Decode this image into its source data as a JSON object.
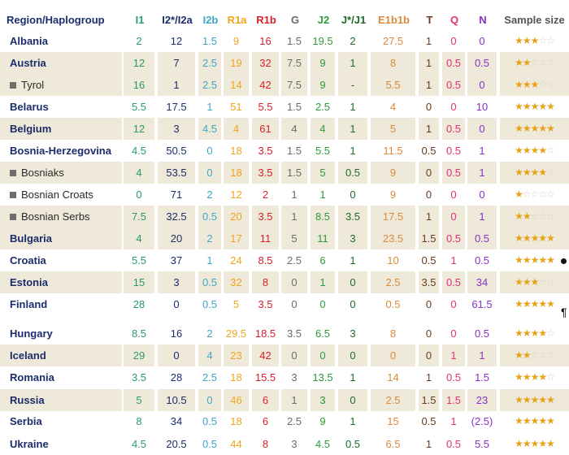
{
  "columns": [
    {
      "key": "region",
      "label": "Region/Haplogroup",
      "color": "#1b2d6b"
    },
    {
      "key": "I1",
      "label": "I1",
      "color": "#2a9a6b"
    },
    {
      "key": "I2",
      "label": "I2*/I2a",
      "color": "#1b2d6b"
    },
    {
      "key": "I2b",
      "label": "I2b",
      "color": "#3fa6c8"
    },
    {
      "key": "R1a",
      "label": "R1a",
      "color": "#f0a51c"
    },
    {
      "key": "R1b",
      "label": "R1b",
      "color": "#d8202a"
    },
    {
      "key": "G",
      "label": "G",
      "color": "#6b6b6b"
    },
    {
      "key": "J2",
      "label": "J2",
      "color": "#2d9a3a"
    },
    {
      "key": "J1",
      "label": "J*/J1",
      "color": "#1f6b2a"
    },
    {
      "key": "E1b1b",
      "label": "E1b1b",
      "color": "#d98a3c"
    },
    {
      "key": "T",
      "label": "T",
      "color": "#6b3a1e"
    },
    {
      "key": "Q",
      "label": "Q",
      "color": "#e0307a"
    },
    {
      "key": "N",
      "label": "N",
      "color": "#8a2fc9"
    },
    {
      "key": "size",
      "label": "Sample size",
      "color": "#555555"
    }
  ],
  "rows": [
    {
      "region": "Albania",
      "sub": false,
      "shade": false,
      "vals": [
        "2",
        "12",
        "1.5",
        "9",
        "16",
        "1.5",
        "19.5",
        "2",
        "27.5",
        "1",
        "0",
        "0"
      ],
      "stars": 3
    },
    {
      "region": "Austria",
      "sub": false,
      "shade": true,
      "vals": [
        "12",
        "7",
        "2.5",
        "19",
        "32",
        "7.5",
        "9",
        "1",
        "8",
        "1",
        "0.5",
        "0.5"
      ],
      "stars": 2
    },
    {
      "region": "Tyrol",
      "sub": true,
      "shade": true,
      "vals": [
        "16",
        "1",
        "2.5",
        "14",
        "42",
        "7.5",
        "9",
        "-",
        "5.5",
        "1",
        "0.5",
        "0"
      ],
      "stars": 3
    },
    {
      "region": "Belarus",
      "sub": false,
      "shade": false,
      "vals": [
        "5.5",
        "17.5",
        "1",
        "51",
        "5.5",
        "1.5",
        "2.5",
        "1",
        "4",
        "0",
        "0",
        "10"
      ],
      "stars": 5
    },
    {
      "region": "Belgium",
      "sub": false,
      "shade": true,
      "vals": [
        "12",
        "3",
        "4.5",
        "4",
        "61",
        "4",
        "4",
        "1",
        "5",
        "1",
        "0.5",
        "0"
      ],
      "stars": 5
    },
    {
      "region": "Bosnia-Herzegovina",
      "sub": false,
      "shade": false,
      "vals": [
        "4.5",
        "50.5",
        "0",
        "18",
        "3.5",
        "1.5",
        "5.5",
        "1",
        "11.5",
        "0.5",
        "0.5",
        "1"
      ],
      "stars": 4
    },
    {
      "region": "Bosniaks",
      "sub": true,
      "shade": true,
      "vals": [
        "4",
        "53.5",
        "0",
        "18",
        "3.5",
        "1.5",
        "5",
        "0.5",
        "9",
        "0",
        "0.5",
        "1"
      ],
      "stars": 4
    },
    {
      "region": "Bosnian Croats",
      "sub": true,
      "shade": false,
      "vals": [
        "0",
        "71",
        "2",
        "12",
        "2",
        "1",
        "1",
        "0",
        "9",
        "0",
        "0",
        "0"
      ],
      "stars": 1
    },
    {
      "region": "Bosnian Serbs",
      "sub": true,
      "shade": true,
      "vals": [
        "7.5",
        "32.5",
        "0.5",
        "20",
        "3.5",
        "1",
        "8.5",
        "3.5",
        "17.5",
        "1",
        "0",
        "1"
      ],
      "stars": 2
    },
    {
      "region": "Bulgaria",
      "sub": false,
      "shade": true,
      "vals": [
        "4",
        "20",
        "2",
        "17",
        "11",
        "5",
        "11",
        "3",
        "23.5",
        "1.5",
        "0.5",
        "0.5"
      ],
      "stars": 5
    },
    {
      "region": "Croatia",
      "sub": false,
      "shade": false,
      "vals": [
        "5.5",
        "37",
        "1",
        "24",
        "8.5",
        "2.5",
        "6",
        "1",
        "10",
        "0.5",
        "1",
        "0.5"
      ],
      "stars": 5
    },
    {
      "region": "Estonia",
      "sub": false,
      "shade": true,
      "vals": [
        "15",
        "3",
        "0.5",
        "32",
        "8",
        "0",
        "1",
        "0",
        "2.5",
        "3.5",
        "0.5",
        "34"
      ],
      "stars": 3
    },
    {
      "region": "Finland",
      "sub": false,
      "shade": false,
      "vals": [
        "28",
        "0",
        "0.5",
        "5",
        "3.5",
        "0",
        "0",
        "0",
        "0.5",
        "0",
        "0",
        "61.5"
      ],
      "stars": 5
    },
    {
      "region": "Hungary",
      "sub": false,
      "shade": false,
      "vals": [
        "8.5",
        "16",
        "2",
        "29.5",
        "18.5",
        "3.5",
        "6.5",
        "3",
        "8",
        "0",
        "0",
        "0.5"
      ],
      "stars": 4
    },
    {
      "region": "Iceland",
      "sub": false,
      "shade": true,
      "vals": [
        "29",
        "0",
        "4",
        "23",
        "42",
        "0",
        "0",
        "0",
        "0",
        "0",
        "1",
        "1"
      ],
      "stars": 2
    },
    {
      "region": "Romania",
      "sub": false,
      "shade": false,
      "vals": [
        "3.5",
        "28",
        "2.5",
        "18",
        "15.5",
        "3",
        "13.5",
        "1",
        "14",
        "1",
        "0.5",
        "1.5"
      ],
      "stars": 4
    },
    {
      "region": "Russia",
      "sub": false,
      "shade": true,
      "vals": [
        "5",
        "10.5",
        "0",
        "46",
        "6",
        "1",
        "3",
        "0",
        "2.5",
        "1.5",
        "1.5",
        "23"
      ],
      "stars": 5
    },
    {
      "region": "Serbia",
      "sub": false,
      "shade": false,
      "vals": [
        "8",
        "34",
        "0.5",
        "18",
        "6",
        "2.5",
        "9",
        "1",
        "15",
        "0.5",
        "1",
        "(2.5)"
      ],
      "stars": 5
    },
    {
      "region": "Ukraine",
      "sub": false,
      "shade": false,
      "vals": [
        "4.5",
        "20.5",
        "0.5",
        "44",
        "8",
        "3",
        "4.5",
        "0.5",
        "6.5",
        "1",
        "0.5",
        "5.5"
      ],
      "stars": 5
    }
  ]
}
